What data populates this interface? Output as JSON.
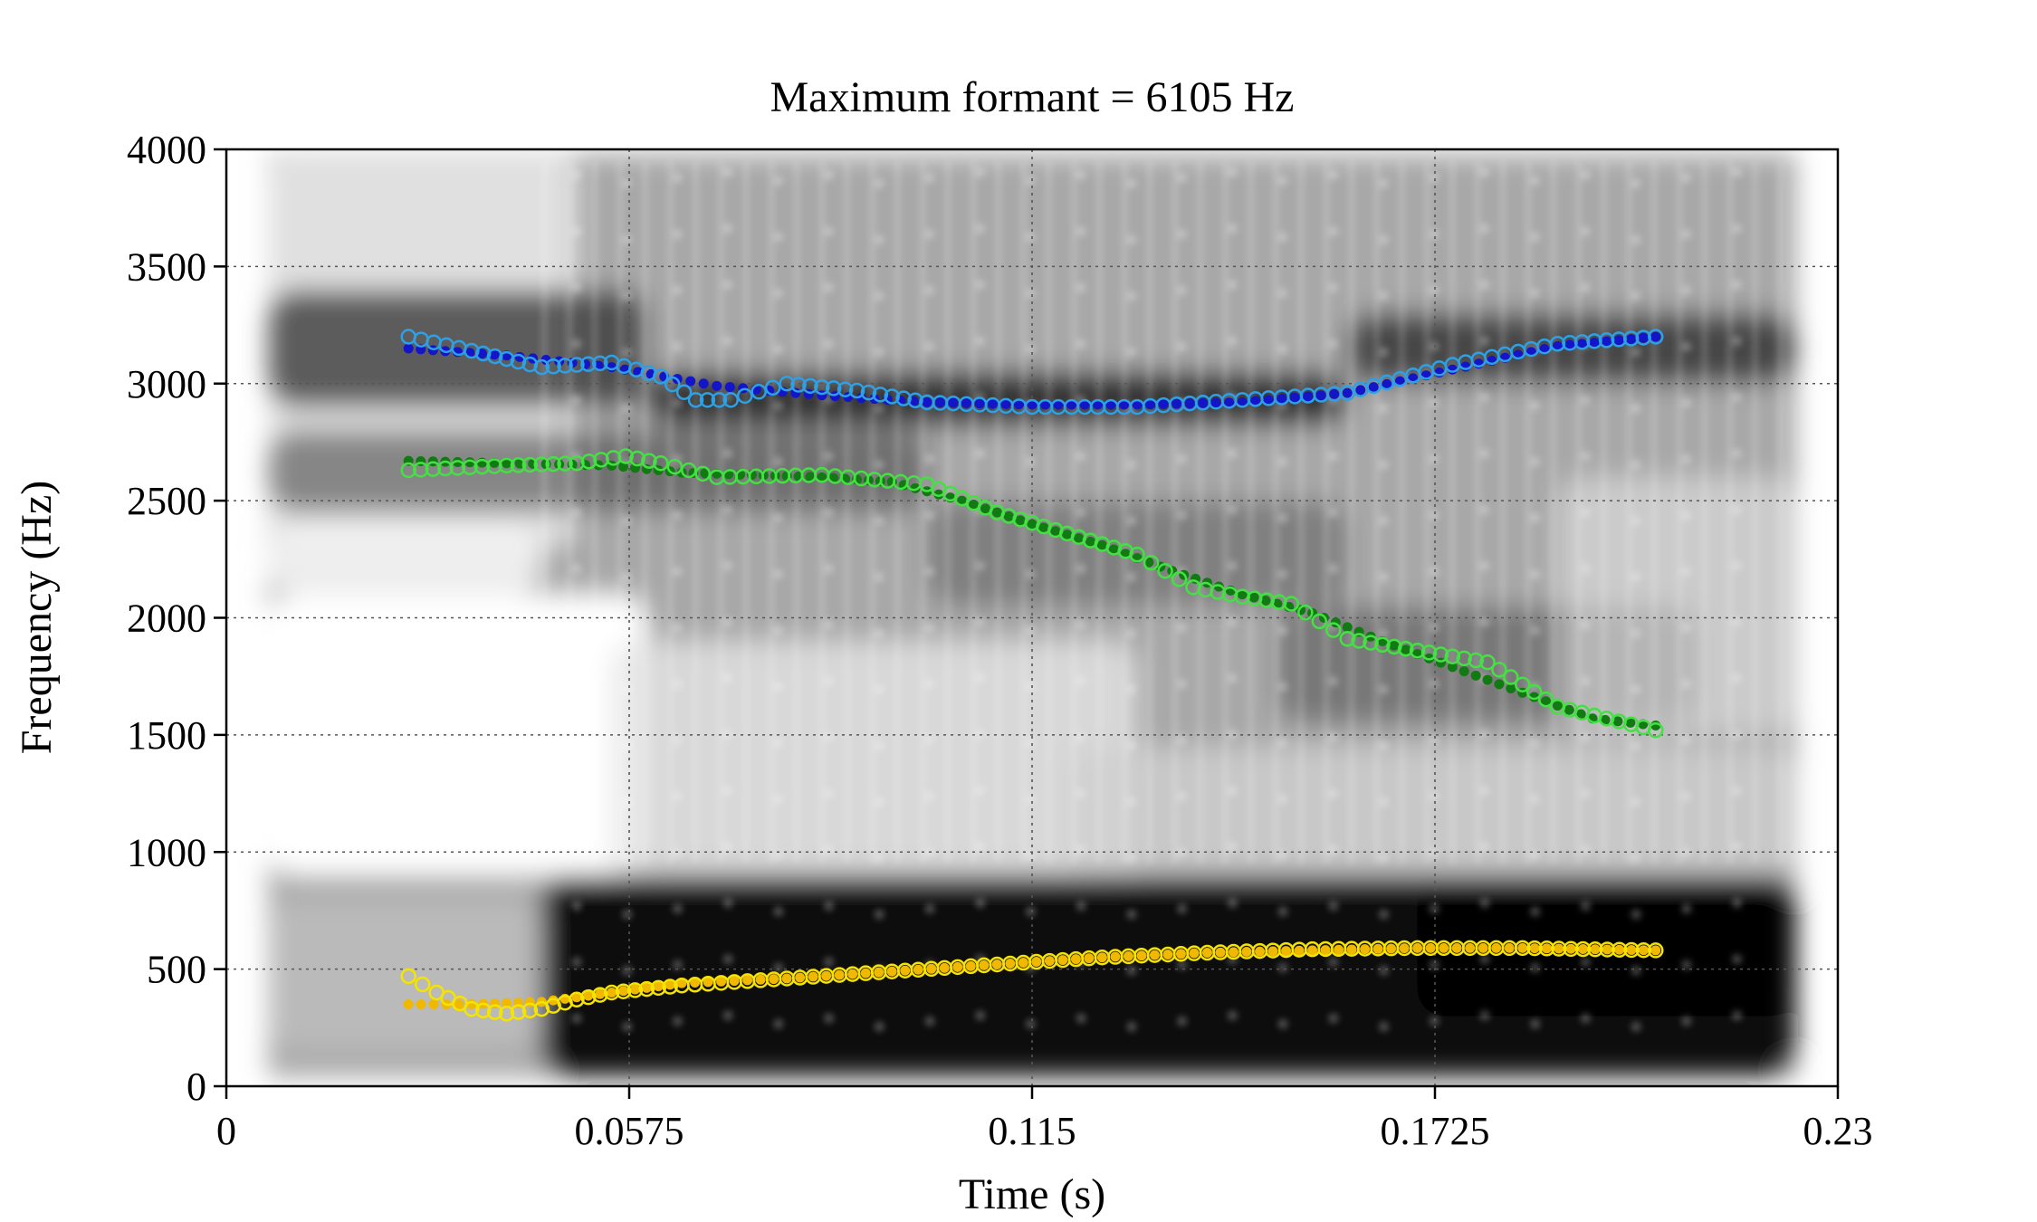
{
  "chart_data": {
    "type": "scatter",
    "title": "Maximum formant = 6105 Hz",
    "xlabel": "Time (s)",
    "ylabel": "Frequency (Hz)",
    "xlim": [
      0,
      0.23
    ],
    "ylim": [
      0,
      4000
    ],
    "x_ticks": [
      0,
      0.0575,
      0.115,
      0.1725,
      0.23
    ],
    "x_tick_labels": [
      "0",
      "0.0575",
      "0.115",
      "0.1725",
      "0.23"
    ],
    "y_ticks": [
      0,
      500,
      1000,
      1500,
      2000,
      2500,
      3000,
      3500,
      4000
    ],
    "y_tick_labels": [
      "0",
      "500",
      "1000",
      "1500",
      "2000",
      "2500",
      "3000",
      "3500",
      "4000"
    ],
    "grid": true,
    "background": "grayscale spectrogram",
    "spectrogram_time_range": [
      0.006,
      0.224
    ],
    "series": [
      {
        "marker": "filled",
        "color": "#1414c8",
        "x": [
          0.026,
          0.04,
          0.055,
          0.07,
          0.085,
          0.1,
          0.115,
          0.13,
          0.145,
          0.16,
          0.175,
          0.19,
          0.204
        ],
        "y": [
          3150,
          3120,
          3070,
          2990,
          2950,
          2920,
          2910,
          2910,
          2920,
          2960,
          3060,
          3160,
          3200
        ]
      },
      {
        "marker": "open",
        "color": "#2ea0e6",
        "x": [
          0.026,
          0.035,
          0.045,
          0.055,
          0.062,
          0.067,
          0.072,
          0.08,
          0.09,
          0.1,
          0.115,
          0.13,
          0.145,
          0.16,
          0.175,
          0.19,
          0.204
        ],
        "y": [
          3200,
          3140,
          3070,
          3090,
          3030,
          2930,
          2930,
          3000,
          2970,
          2920,
          2900,
          2900,
          2930,
          2960,
          3080,
          3170,
          3200
        ]
      },
      {
        "marker": "filled",
        "color": "#127a12",
        "x": [
          0.026,
          0.04,
          0.055,
          0.065,
          0.075,
          0.085,
          0.095,
          0.105,
          0.115,
          0.125,
          0.135,
          0.145,
          0.155,
          0.165,
          0.175,
          0.185,
          0.195,
          0.204
        ],
        "y": [
          2670,
          2660,
          2650,
          2620,
          2610,
          2600,
          2580,
          2500,
          2400,
          2310,
          2200,
          2100,
          2020,
          1900,
          1790,
          1680,
          1570,
          1540
        ]
      },
      {
        "marker": "open",
        "color": "#44e044",
        "x": [
          0.026,
          0.04,
          0.05,
          0.057,
          0.062,
          0.07,
          0.085,
          0.1,
          0.11,
          0.12,
          0.13,
          0.138,
          0.145,
          0.152,
          0.16,
          0.17,
          0.18,
          0.19,
          0.204
        ],
        "y": [
          2630,
          2650,
          2660,
          2690,
          2660,
          2600,
          2610,
          2570,
          2450,
          2360,
          2270,
          2130,
          2090,
          2060,
          1910,
          1860,
          1810,
          1620,
          1520
        ]
      },
      {
        "marker": "filled",
        "color": "#f0b800",
        "x": [
          0.026,
          0.035,
          0.045,
          0.055,
          0.065,
          0.08,
          0.095,
          0.11,
          0.125,
          0.14,
          0.155,
          0.17,
          0.185,
          0.204
        ],
        "y": [
          350,
          350,
          360,
          400,
          440,
          460,
          490,
          520,
          550,
          570,
          580,
          590,
          590,
          580
        ]
      },
      {
        "marker": "open",
        "color": "#f5e400",
        "x": [
          0.026,
          0.03,
          0.035,
          0.04,
          0.045,
          0.05,
          0.055,
          0.065,
          0.08,
          0.095,
          0.11,
          0.125,
          0.14,
          0.155,
          0.17,
          0.185,
          0.204
        ],
        "y": [
          470,
          400,
          330,
          310,
          330,
          370,
          400,
          430,
          460,
          490,
          520,
          550,
          570,
          585,
          590,
          590,
          580
        ]
      }
    ]
  }
}
